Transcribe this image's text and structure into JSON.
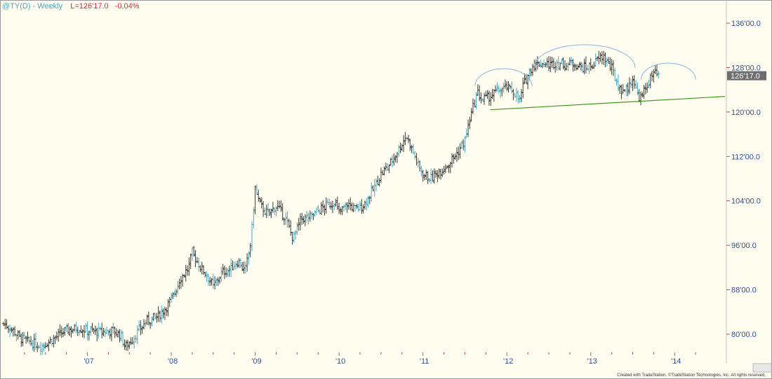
{
  "header": {
    "symbol": "@TY(D) - Weekly",
    "last": "L=126'17.0",
    "change": "-0.04%"
  },
  "copyright": "Created with TradeStation. ©TradeStation Technologies, Inc. All rights reserved.",
  "colors": {
    "background": "#fffdf0",
    "bar": "#3a3a3a",
    "bar_alt": "#4aa8c0",
    "price_tag": "#6e6e6e",
    "trendline": "#3f9a1e",
    "arc": "#8ab4e6",
    "axis_text": "#2e4f9a",
    "tick_mark": "#d4283c"
  },
  "chart_data": {
    "type": "ohlc",
    "title": "",
    "xlabel": "",
    "ylabel": "",
    "ylim": [
      76,
      139
    ],
    "y_ticks": [
      {
        "value": 136,
        "label": "136'00.0"
      },
      {
        "value": 128,
        "label": "128'00.0"
      },
      {
        "value": 120,
        "label": "120'00.0"
      },
      {
        "value": 112,
        "label": "112'00.0"
      },
      {
        "value": 104,
        "label": "104'00.0"
      },
      {
        "value": 96,
        "label": "96'00.0"
      },
      {
        "value": 88,
        "label": "88'00.0"
      },
      {
        "value": 80,
        "label": "80'00.0"
      }
    ],
    "last_price": {
      "value": 126.53,
      "label": "126'17.0"
    },
    "x_range": [
      2006.0,
      2014.6
    ],
    "x_ticks": [
      {
        "value": 2007.0,
        "label": "'07"
      },
      {
        "value": 2008.0,
        "label": "'08"
      },
      {
        "value": 2009.0,
        "label": "'09"
      },
      {
        "value": 2010.0,
        "label": "'10"
      },
      {
        "value": 2011.0,
        "label": "'11"
      },
      {
        "value": 2012.0,
        "label": "'12"
      },
      {
        "value": 2013.0,
        "label": "'13"
      },
      {
        "value": 2014.0,
        "label": "'14"
      }
    ],
    "quarter_ticks": [
      2006.25,
      2006.5,
      2006.75,
      2007.25,
      2007.5,
      2007.75,
      2008.25,
      2008.5,
      2008.75,
      2009.25,
      2009.5,
      2009.75,
      2010.25,
      2010.5,
      2010.75,
      2011.25,
      2011.5,
      2011.75,
      2012.25,
      2012.5,
      2012.75,
      2013.25,
      2013.5,
      2013.75,
      2014.25
    ],
    "price_path": [
      [
        2006.0,
        81.9
      ],
      [
        2006.1,
        80.9
      ],
      [
        2006.2,
        79.3
      ],
      [
        2006.3,
        78.6
      ],
      [
        2006.45,
        77.9
      ],
      [
        2006.6,
        79.2
      ],
      [
        2006.75,
        80.7
      ],
      [
        2006.9,
        81.1
      ],
      [
        2007.0,
        80.6
      ],
      [
        2007.15,
        80.4
      ],
      [
        2007.3,
        80.6
      ],
      [
        2007.4,
        79.8
      ],
      [
        2007.45,
        77.6
      ],
      [
        2007.55,
        79.4
      ],
      [
        2007.7,
        82.3
      ],
      [
        2007.85,
        83.3
      ],
      [
        2008.0,
        86.1
      ],
      [
        2008.1,
        89.9
      ],
      [
        2008.2,
        91.8
      ],
      [
        2008.25,
        94.6
      ],
      [
        2008.35,
        92.0
      ],
      [
        2008.45,
        90.1
      ],
      [
        2008.5,
        88.5
      ],
      [
        2008.6,
        91.0
      ],
      [
        2008.7,
        91.8
      ],
      [
        2008.8,
        93.2
      ],
      [
        2008.88,
        91.2
      ],
      [
        2008.95,
        96.8
      ],
      [
        2009.0,
        106.3
      ],
      [
        2009.05,
        103.5
      ],
      [
        2009.15,
        101.5
      ],
      [
        2009.25,
        103.1
      ],
      [
        2009.35,
        101.2
      ],
      [
        2009.45,
        97.2
      ],
      [
        2009.55,
        100.8
      ],
      [
        2009.65,
        101.0
      ],
      [
        2009.75,
        102.2
      ],
      [
        2009.85,
        103.1
      ],
      [
        2009.95,
        103.9
      ],
      [
        2010.0,
        101.7
      ],
      [
        2010.1,
        103.5
      ],
      [
        2010.2,
        102.4
      ],
      [
        2010.3,
        103.4
      ],
      [
        2010.4,
        105.9
      ],
      [
        2010.5,
        108.8
      ],
      [
        2010.6,
        110.5
      ],
      [
        2010.7,
        113.0
      ],
      [
        2010.8,
        115.8
      ],
      [
        2010.85,
        114.0
      ],
      [
        2010.9,
        112.1
      ],
      [
        2010.95,
        110.0
      ],
      [
        2011.0,
        108.8
      ],
      [
        2011.1,
        108.0
      ],
      [
        2011.2,
        109.4
      ],
      [
        2011.3,
        110.6
      ],
      [
        2011.4,
        112.4
      ],
      [
        2011.5,
        114.9
      ],
      [
        2011.55,
        118.2
      ],
      [
        2011.6,
        121.0
      ],
      [
        2011.65,
        123.5
      ],
      [
        2011.7,
        122.2
      ],
      [
        2011.8,
        122.8
      ],
      [
        2011.9,
        123.9
      ],
      [
        2012.0,
        124.4
      ],
      [
        2012.1,
        123.4
      ],
      [
        2012.15,
        121.9
      ],
      [
        2012.2,
        125.0
      ],
      [
        2012.3,
        128.3
      ],
      [
        2012.4,
        128.8
      ],
      [
        2012.5,
        128.5
      ],
      [
        2012.6,
        128.9
      ],
      [
        2012.7,
        128.5
      ],
      [
        2012.8,
        128.8
      ],
      [
        2012.9,
        127.9
      ],
      [
        2013.0,
        128.2
      ],
      [
        2013.1,
        129.6
      ],
      [
        2013.15,
        130.1
      ],
      [
        2013.25,
        127.7
      ],
      [
        2013.35,
        123.9
      ],
      [
        2013.45,
        124.3
      ],
      [
        2013.5,
        126.3
      ],
      [
        2013.55,
        123.3
      ],
      [
        2013.6,
        122.4
      ],
      [
        2013.7,
        125.8
      ],
      [
        2013.75,
        126.9
      ],
      [
        2013.82,
        126.5
      ]
    ],
    "overlays": {
      "trendline": {
        "from": [
          2011.8,
          120.4
        ],
        "to": [
          2014.6,
          122.8
        ]
      },
      "arcs": [
        {
          "x_start": 2011.62,
          "x_end": 2012.3,
          "y_base": 124.6,
          "y_peak": 127.8
        },
        {
          "x_start": 2012.32,
          "x_end": 2013.53,
          "y_base": 127.9,
          "y_peak": 132.1
        },
        {
          "x_start": 2013.6,
          "x_end": 2014.25,
          "y_base": 125.8,
          "y_peak": 128.8
        }
      ]
    }
  }
}
